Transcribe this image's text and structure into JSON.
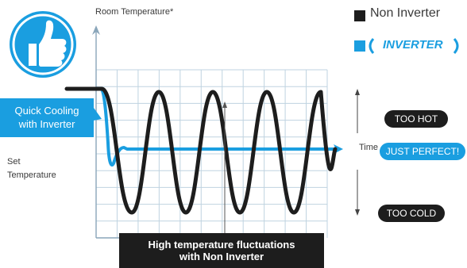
{
  "chart_data": {
    "type": "line",
    "ylabel": "Room Temperature*",
    "xlabel": "Time",
    "set_point_label": "Set\nTemperature",
    "series": [
      {
        "name": "Non Inverter",
        "color": "#1d1d1d",
        "behavior": "large oscillation around set temperature (~4 cycles)"
      },
      {
        "name": "INVERTER",
        "color": "#1a9ee0",
        "behavior": "quick drop to set temperature then stable"
      }
    ],
    "annotations": {
      "quick_cooling": "Quick Cooling\nwith Inverter",
      "fluctuations": "High temperature fluctuations\nwith Non Inverter",
      "too_hot": "TOO HOT",
      "just_perfect": "JUST PERFECT!",
      "too_cold": "TOO COLD"
    },
    "grid": true,
    "legend": {
      "placement": "top-right",
      "items": [
        "Non Inverter",
        "INVERTER"
      ]
    }
  },
  "icons": {
    "thumb": "thumbs-up-icon"
  }
}
